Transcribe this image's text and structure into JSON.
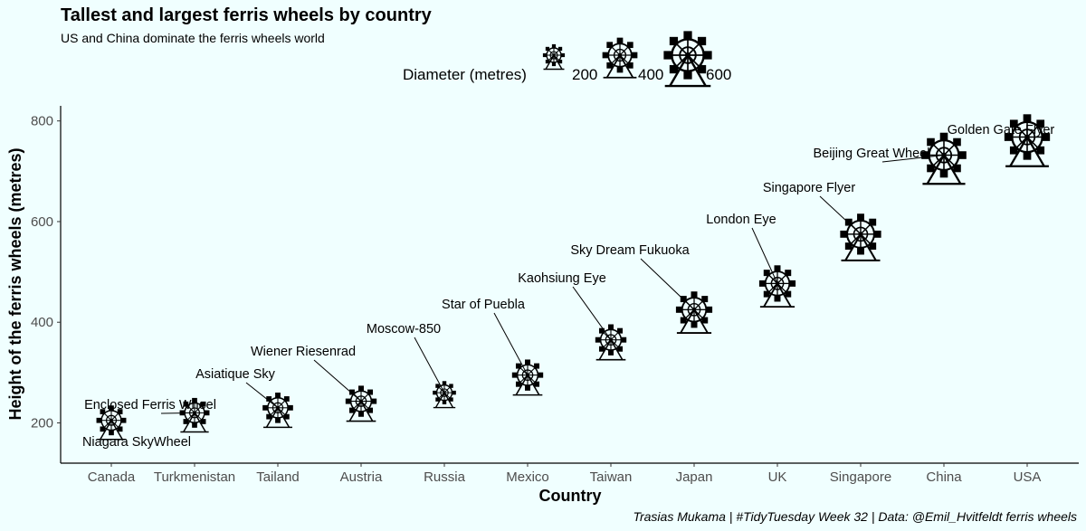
{
  "chart_data": {
    "type": "scatter",
    "title": "Tallest and largest ferris wheels by country",
    "subtitle": "US and China dominate the ferris wheels world",
    "caption": "Trasias Mukama | #TidyTuesday Week 32 | Data: @Emil_Hvitfeldt ferris wheels",
    "xlabel": "Country",
    "ylabel": "Height of the ferris wheels (metres)",
    "ylim": [
      120,
      830
    ],
    "yticks": [
      200,
      400,
      600,
      800
    ],
    "grid": false,
    "legend": {
      "title": "Diameter (metres)",
      "position": "top",
      "entries": [
        200,
        400,
        600
      ]
    },
    "categories": [
      "Canada",
      "Turkmenistan",
      "Tailand",
      "Austria",
      "Russia",
      "Mexico",
      "Taiwan",
      "Japan",
      "UK",
      "Singapore",
      "China",
      "USA"
    ],
    "points": [
      {
        "country": "Canada",
        "height": 205,
        "diameter": 320,
        "label": "Niagara SkyWheel"
      },
      {
        "country": "Turkmenistan",
        "height": 220,
        "diameter": 320,
        "label": "Enclosed Ferris Wheel"
      },
      {
        "country": "Tailand",
        "height": 230,
        "diameter": 330,
        "label": "Asiatique Sky"
      },
      {
        "country": "Austria",
        "height": 243,
        "diameter": 340,
        "label": "Wiener Riesenrad"
      },
      {
        "country": "Russia",
        "height": 260,
        "diameter": 220,
        "label": "Moscow-850"
      },
      {
        "country": "Mexico",
        "height": 295,
        "diameter": 340,
        "label": "Star of Puebla"
      },
      {
        "country": "Taiwan",
        "height": 365,
        "diameter": 340,
        "label": "Kaohsiung Eye"
      },
      {
        "country": "Japan",
        "height": 425,
        "diameter": 420,
        "label": "Sky Dream Fukuoka"
      },
      {
        "country": "UK",
        "height": 477,
        "diameter": 420,
        "label": "London Eye"
      },
      {
        "country": "Singapore",
        "height": 575,
        "diameter": 490,
        "label": "Singapore Flyer"
      },
      {
        "country": "China",
        "height": 732,
        "diameter": 550,
        "label": "Beijing Great Wheel"
      },
      {
        "country": "USA",
        "height": 768,
        "diameter": 560,
        "label": "Golden Gate Flyer"
      }
    ],
    "colors": {
      "background": "#f0ffff",
      "marks": "#000000",
      "axis_text": "#4d4d4d"
    }
  }
}
